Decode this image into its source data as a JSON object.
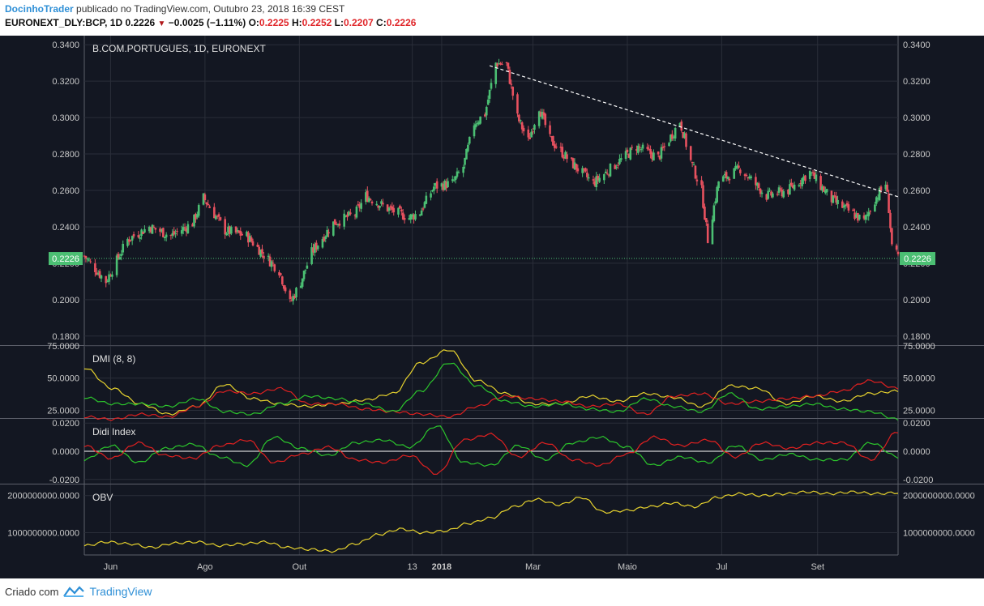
{
  "header": {
    "author": "DocinhoTrader",
    "published": "publicado no TradingView.com, Outubro 23, 2018 16:39 CEST",
    "symbol": "EURONEXT_DLY:BCP, 1D",
    "last": "0.2226",
    "change": "−0.0025 (−1.11%)",
    "o_label": "O:",
    "o": "0.2225",
    "h_label": "H:",
    "h": "0.2252",
    "l_label": "L:",
    "l": "0.2207",
    "c_label": "C:",
    "c": "0.2226",
    "down_arrow_icon": "triangle-down-icon"
  },
  "footer": {
    "created": "Criado com",
    "brand": "TradingView",
    "logo_icon": "tradingview-logo-icon"
  },
  "colors": {
    "background": "#131722",
    "grid": "#2a2e39",
    "axis_text": "#c8c8c8",
    "up": "#4bbf73",
    "down": "#e8515f",
    "price_line": "#4bbf73",
    "dmi_plus": "#2cc62c",
    "dmi_minus": "#e02020",
    "adx": "#e6d22e",
    "obv": "#e6d22e",
    "trendline": "#ffffff"
  },
  "chart_data": [
    {
      "type": "candlestick",
      "title": "B.COM.PORTUGUES, 1D, EURONEXT",
      "ylim": [
        0.175,
        0.345
      ],
      "yticks": [
        "0.3400",
        "0.3200",
        "0.3000",
        "0.2800",
        "0.2600",
        "0.2400",
        "0.2200",
        "0.2000",
        "0.1800"
      ],
      "x_labels": [
        "Jun",
        "Ago",
        "Out",
        "13",
        "2018",
        "Mar",
        "Maio",
        "Jul",
        "Set"
      ],
      "last_price_label": "0.2226",
      "last_price": 0.2226,
      "x_start": "2017-05-15",
      "x_end": "2018-10-23",
      "trendline": {
        "from": [
          "2018-02-01",
          0.3285
        ],
        "to": [
          "2018-10-23",
          0.2565
        ],
        "style": "dashed"
      },
      "close_keypoints": [
        [
          "2017-05-15",
          0.224
        ],
        [
          "2017-05-29",
          0.21
        ],
        [
          "2017-06-12",
          0.233
        ],
        [
          "2017-06-26",
          0.24
        ],
        [
          "2017-07-10",
          0.235
        ],
        [
          "2017-07-24",
          0.242
        ],
        [
          "2017-07-31",
          0.256
        ],
        [
          "2017-08-14",
          0.238
        ],
        [
          "2017-08-28",
          0.235
        ],
        [
          "2017-09-11",
          0.222
        ],
        [
          "2017-09-18",
          0.216
        ],
        [
          "2017-09-25",
          0.198
        ],
        [
          "2017-10-02",
          0.21
        ],
        [
          "2017-10-09",
          0.226
        ],
        [
          "2017-10-23",
          0.242
        ],
        [
          "2017-11-06",
          0.247
        ],
        [
          "2017-11-13",
          0.257
        ],
        [
          "2017-11-27",
          0.25
        ],
        [
          "2017-12-11",
          0.245
        ],
        [
          "2017-12-18",
          0.248
        ],
        [
          "2017-12-27",
          0.262
        ],
        [
          "2018-01-08",
          0.264
        ],
        [
          "2018-01-15",
          0.273
        ],
        [
          "2018-01-22",
          0.297
        ],
        [
          "2018-01-29",
          0.302
        ],
        [
          "2018-02-05",
          0.33
        ],
        [
          "2018-02-12",
          0.329
        ],
        [
          "2018-02-19",
          0.3
        ],
        [
          "2018-02-26",
          0.287
        ],
        [
          "2018-03-05",
          0.306
        ],
        [
          "2018-03-12",
          0.288
        ],
        [
          "2018-03-26",
          0.275
        ],
        [
          "2018-04-09",
          0.264
        ],
        [
          "2018-04-23",
          0.274
        ],
        [
          "2018-05-07",
          0.284
        ],
        [
          "2018-05-21",
          0.278
        ],
        [
          "2018-06-04",
          0.298
        ],
        [
          "2018-06-11",
          0.276
        ],
        [
          "2018-06-18",
          0.26
        ],
        [
          "2018-06-22",
          0.233
        ],
        [
          "2018-06-29",
          0.265
        ],
        [
          "2018-07-13",
          0.272
        ],
        [
          "2018-07-30",
          0.257
        ],
        [
          "2018-08-13",
          0.26
        ],
        [
          "2018-08-27",
          0.27
        ],
        [
          "2018-09-10",
          0.255
        ],
        [
          "2018-09-24",
          0.247
        ],
        [
          "2018-10-01",
          0.243
        ],
        [
          "2018-10-08",
          0.255
        ],
        [
          "2018-10-15",
          0.264
        ],
        [
          "2018-10-17",
          0.25
        ],
        [
          "2018-10-19",
          0.23
        ],
        [
          "2018-10-23",
          0.2226
        ]
      ]
    },
    {
      "type": "line",
      "title": "DMI (8, 8)",
      "ylim": [
        19,
        75
      ],
      "yticks": [
        "75.0000",
        "50.0000",
        "25.0000"
      ],
      "series": [
        {
          "key": "adx",
          "values": [
            58,
            42,
            30,
            22,
            28,
            45,
            34,
            30,
            28,
            30,
            33,
            38,
            62,
            72,
            48,
            38,
            30,
            30,
            36,
            32,
            38,
            35,
            28,
            44,
            42,
            30,
            36,
            32,
            38,
            40
          ]
        },
        {
          "key": "minus",
          "values": [
            20,
            18,
            22,
            20,
            28,
            40,
            38,
            42,
            30,
            30,
            26,
            24,
            22,
            20,
            28,
            36,
            34,
            32,
            28,
            30,
            22,
            36,
            38,
            30,
            32,
            34,
            36,
            40,
            48,
            42
          ]
        },
        {
          "key": "plus",
          "values": [
            35,
            30,
            30,
            28,
            34,
            24,
            22,
            30,
            36,
            34,
            30,
            24,
            40,
            62,
            44,
            32,
            28,
            30,
            26,
            24,
            34,
            28,
            24,
            38,
            26,
            28,
            30,
            26,
            24,
            18
          ]
        }
      ]
    },
    {
      "type": "line",
      "title": "Didi Index",
      "ylim": [
        -0.023,
        0.023
      ],
      "yticks": [
        "0.0200",
        "0.0000",
        "-0.0200"
      ],
      "series": [
        {
          "key": "plus",
          "values": [
            -0.006,
            0.004,
            -0.008,
            0.002,
            0.005,
            -0.004,
            -0.01,
            0.01,
            0.002,
            -0.003,
            0.006,
            0.008,
            0.003,
            0.018,
            -0.008,
            -0.01,
            0.004,
            -0.006,
            0.006,
            0.01,
            0.003,
            -0.01,
            -0.004,
            -0.008,
            0.004,
            -0.006,
            -0.002,
            -0.006,
            -0.006,
            0.006,
            -0.004
          ]
        },
        {
          "key": "minus",
          "values": [
            0.004,
            -0.005,
            0.006,
            -0.003,
            -0.005,
            0.004,
            0.008,
            -0.008,
            -0.002,
            0.003,
            -0.006,
            -0.008,
            -0.003,
            -0.016,
            0.008,
            0.012,
            -0.004,
            0.006,
            -0.006,
            -0.01,
            -0.002,
            0.01,
            0.004,
            0.008,
            -0.004,
            0.006,
            0.002,
            0.006,
            0.006,
            -0.006,
            0.014
          ]
        }
      ]
    },
    {
      "type": "line",
      "title": "OBV",
      "ylim": [
        400000000,
        2300000000
      ],
      "yticks": [
        "2000000000.0000",
        "1000000000.0000"
      ],
      "series": [
        {
          "key": "obv",
          "values": [
            650000000,
            750000000,
            700000000,
            600000000,
            720000000,
            750000000,
            650000000,
            700000000,
            750000000,
            600000000,
            550000000,
            500000000,
            700000000,
            950000000,
            1100000000,
            1000000000,
            1050000000,
            1250000000,
            1400000000,
            1700000000,
            1900000000,
            1750000000,
            1950000000,
            1550000000,
            1600000000,
            1700000000,
            1800000000,
            1700000000,
            1950000000,
            2050000000,
            2000000000,
            2050000000,
            2100000000,
            2050000000,
            2100000000,
            2050000000,
            2080000000
          ]
        }
      ]
    }
  ]
}
